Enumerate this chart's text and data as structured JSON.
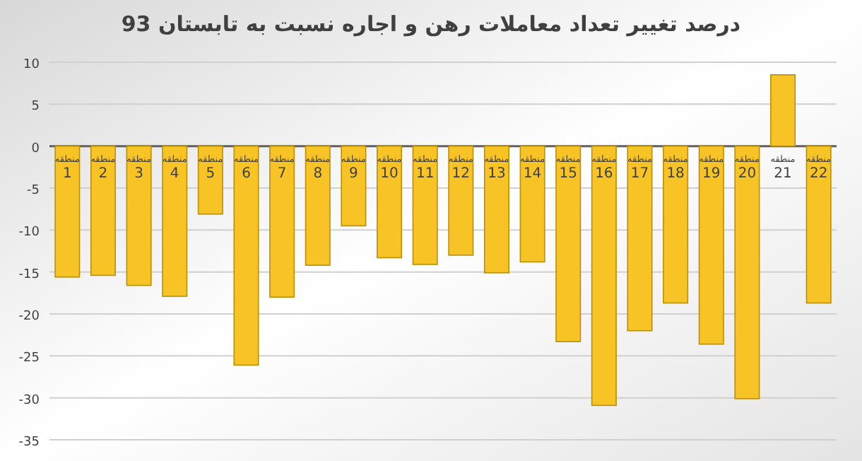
{
  "chart_data": {
    "type": "bar",
    "title": "درصد تغییر تعداد معاملات رهن و اجاره نسبت به تابستان 93",
    "categories": [
      "منطقه 1",
      "منطقه 2",
      "منطقه 3",
      "منطقه 4",
      "منطقه 5",
      "منطقه 6",
      "منطقه 7",
      "منطقه 8",
      "منطقه 9",
      "منطقه 10",
      "منطقه 11",
      "منطقه 12",
      "منطقه 13",
      "منطقه 14",
      "منطقه 15",
      "منطقه 16",
      "منطقه 17",
      "منطقه 18",
      "منطقه 19",
      "منطقه 20",
      "منطقه 21",
      "منطقه 22"
    ],
    "values": [
      -15.6,
      -15.4,
      -16.6,
      -17.9,
      -8.1,
      -26.1,
      -18.0,
      -14.2,
      -9.5,
      -13.3,
      -14.1,
      -13.0,
      -15.1,
      -13.8,
      -23.3,
      -30.9,
      -22.0,
      -18.7,
      -23.6,
      -30.1,
      8.5,
      -18.7
    ],
    "color": "#f7c325",
    "ylim": [
      -35,
      10
    ],
    "yticks": [
      -35,
      -30,
      -25,
      -20,
      -15,
      -10,
      -5,
      0,
      5,
      10
    ],
    "grid": "y"
  }
}
